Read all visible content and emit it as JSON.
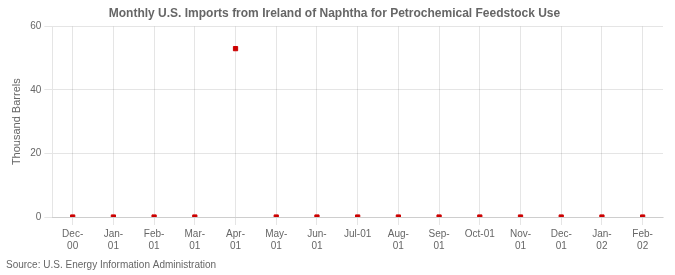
{
  "chart_data": {
    "type": "line",
    "title": "Monthly U.S. Imports from Ireland of Naphtha for Petrochemical Feedstock Use",
    "y_label": "Thousand Barrels",
    "source": "Source: U.S. Energy Information Administration",
    "categories": [
      "Dec-\n00",
      "Jan-\n01",
      "Feb-\n01",
      "Mar-\n01",
      "Apr-\n01",
      "May-\n01",
      "Jun-\n01",
      "Jul-01",
      "Aug-\n01",
      "Sep-\n01",
      "Oct-01",
      "Nov-\n01",
      "Dec-\n01",
      "Jan-\n02",
      "Feb-\n02"
    ],
    "values": [
      0,
      0,
      0,
      0,
      53,
      0,
      0,
      0,
      0,
      0,
      0,
      0,
      0,
      0,
      0
    ],
    "color": "#cc0000",
    "marker": "square",
    "line_style": "none",
    "ylim": [
      0,
      60
    ],
    "yticks": [
      0,
      20,
      40,
      60
    ],
    "grid": true
  }
}
